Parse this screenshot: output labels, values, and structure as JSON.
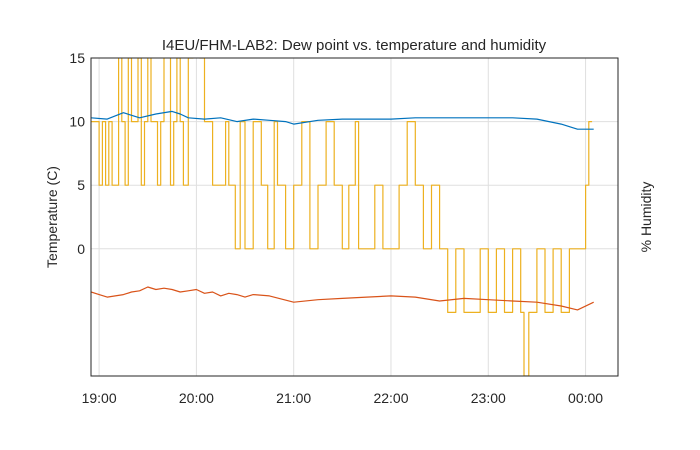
{
  "chart_data": {
    "type": "line",
    "title": "I4EU/FHM-LAB2: Dew point vs. temperature and humidity",
    "ylabel_left": "Temperature (C)",
    "ylabel_right": "% Humidity",
    "ylim": [
      -10,
      15
    ],
    "yticks": [
      0,
      5,
      10,
      15
    ],
    "ytick_labels": [
      "0",
      "5",
      "10",
      "15"
    ],
    "xlim": [
      "18:55",
      "00:20"
    ],
    "xticks": [
      "19:00",
      "20:00",
      "21:00",
      "22:00",
      "23:00",
      "00:00"
    ],
    "grid": true,
    "colors": {
      "temperature": "#0072bd",
      "dew_point": "#d95319",
      "humidity": "#edb120",
      "grid": "#dfdfdf",
      "text": "#262626"
    },
    "series": [
      {
        "key": "temperature",
        "x": [
          "18:55",
          "19:05",
          "19:15",
          "19:25",
          "19:35",
          "19:45",
          "19:50",
          "19:55",
          "20:05",
          "20:15",
          "20:25",
          "20:35",
          "20:45",
          "20:55",
          "21:00",
          "21:15",
          "21:30",
          "21:45",
          "22:00",
          "22:15",
          "22:30",
          "22:45",
          "23:00",
          "23:15",
          "23:30",
          "23:45",
          "23:55",
          "00:05"
        ],
        "values": [
          10.3,
          10.2,
          10.7,
          10.3,
          10.6,
          10.8,
          10.6,
          10.3,
          10.2,
          10.3,
          10.0,
          10.2,
          10.1,
          10.0,
          9.8,
          10.1,
          10.2,
          10.2,
          10.2,
          10.3,
          10.3,
          10.3,
          10.3,
          10.3,
          10.2,
          9.8,
          9.4,
          9.4
        ]
      },
      {
        "key": "dew_point",
        "x": [
          "18:55",
          "19:00",
          "19:05",
          "19:10",
          "19:15",
          "19:20",
          "19:25",
          "19:30",
          "19:35",
          "19:40",
          "19:45",
          "19:50",
          "19:55",
          "20:00",
          "20:05",
          "20:10",
          "20:15",
          "20:20",
          "20:25",
          "20:30",
          "20:35",
          "20:45",
          "21:00",
          "21:15",
          "21:30",
          "21:45",
          "22:00",
          "22:15",
          "22:30",
          "22:45",
          "23:00",
          "23:15",
          "23:30",
          "23:45",
          "23:55",
          "00:05"
        ],
        "values": [
          -3.4,
          -3.6,
          -3.8,
          -3.7,
          -3.6,
          -3.4,
          -3.3,
          -3.0,
          -3.2,
          -3.1,
          -3.2,
          -3.4,
          -3.3,
          -3.2,
          -3.5,
          -3.4,
          -3.7,
          -3.5,
          -3.6,
          -3.8,
          -3.6,
          -3.7,
          -4.2,
          -4.0,
          -3.9,
          -3.8,
          -3.7,
          -3.8,
          -4.1,
          -3.9,
          -4.0,
          -4.1,
          -4.2,
          -4.5,
          -4.8,
          -4.2
        ]
      },
      {
        "key": "humidity",
        "x": [
          "18:55",
          "19:00",
          "19:02",
          "19:04",
          "19:06",
          "19:08",
          "19:10",
          "19:12",
          "19:14",
          "19:16",
          "19:18",
          "19:20",
          "19:24",
          "19:26",
          "19:28",
          "19:30",
          "19:32",
          "19:36",
          "19:38",
          "19:40",
          "19:44",
          "19:46",
          "19:48",
          "19:50",
          "19:52",
          "19:55",
          "19:58",
          "20:00",
          "20:02",
          "20:05",
          "20:10",
          "20:14",
          "20:18",
          "20:20",
          "20:24",
          "20:27",
          "20:30",
          "20:35",
          "20:40",
          "20:44",
          "20:48",
          "20:50",
          "20:55",
          "21:00",
          "21:05",
          "21:10",
          "21:15",
          "21:20",
          "21:25",
          "21:30",
          "21:34",
          "21:38",
          "21:40",
          "21:45",
          "21:50",
          "21:55",
          "22:00",
          "22:05",
          "22:10",
          "22:15",
          "22:20",
          "22:25",
          "22:30",
          "22:35",
          "22:40",
          "22:45",
          "22:50",
          "22:55",
          "23:00",
          "23:05",
          "23:10",
          "23:15",
          "23:20",
          "23:22",
          "23:25",
          "23:30",
          "23:35",
          "23:40",
          "23:45",
          "23:50",
          "23:55",
          "00:00",
          "00:02",
          "00:04"
        ],
        "values": [
          10,
          5,
          10,
          5,
          10,
          5,
          5,
          20,
          10,
          5,
          15,
          10,
          15,
          5,
          10,
          20,
          10,
          5,
          10,
          20,
          5,
          10,
          15,
          10,
          5,
          15,
          20,
          20,
          15,
          10,
          5,
          5,
          10,
          5,
          0,
          10,
          0,
          10,
          5,
          0,
          10,
          5,
          0,
          5,
          10,
          0,
          5,
          10,
          5,
          0,
          5,
          10,
          0,
          0,
          5,
          0,
          0,
          5,
          10,
          5,
          0,
          5,
          0,
          -5,
          0,
          -5,
          -5,
          0,
          -5,
          0,
          -5,
          0,
          -5,
          -10,
          -5,
          0,
          -5,
          0,
          -5,
          0,
          0,
          5,
          10,
          10
        ]
      }
    ]
  }
}
